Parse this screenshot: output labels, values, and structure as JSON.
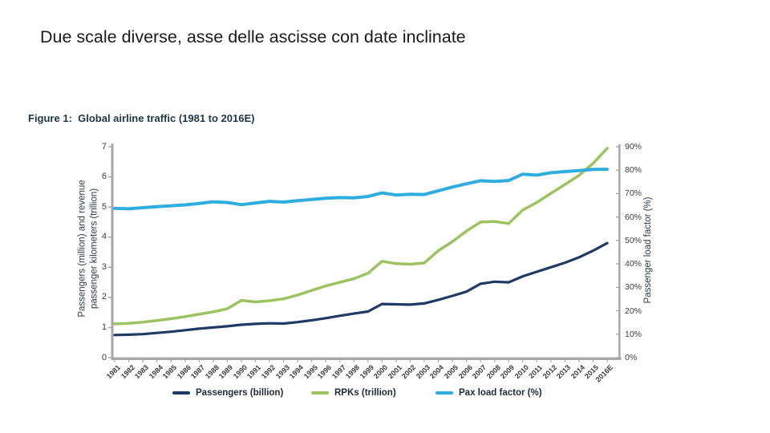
{
  "slide": {
    "title": "Due scale diverse, asse delle ascisse con date inclinate"
  },
  "figure": {
    "title": "Figure 1:  Global airline traffic (1981 to 2016E)"
  },
  "axes": {
    "left": {
      "title_line1": "Passengers (million) and revenue",
      "title_line2": "passenger kilometers (trillion)",
      "ticks": [
        "7",
        "6",
        "5",
        "4",
        "3",
        "2",
        "1",
        "0"
      ]
    },
    "right": {
      "title": "Passenger load factor (%)",
      "ticks": [
        "90%",
        "80%",
        "70%",
        "60%",
        "50%",
        "40%",
        "30%",
        "20%",
        "10%",
        "0%"
      ]
    }
  },
  "legend": {
    "items": [
      {
        "label": "Passengers (billion)",
        "color": "#1f3a64"
      },
      {
        "label": "RPKs (trillion)",
        "color": "#9cc35f"
      },
      {
        "label": "Pax load factor (%)",
        "color": "#2fadde"
      }
    ]
  },
  "chart_data": {
    "type": "line",
    "title": "Figure 1: Global airline traffic (1981 to 2016E)",
    "x": [
      "1981",
      "1982",
      "1983",
      "1984",
      "1985",
      "1986",
      "1987",
      "1988",
      "1989",
      "1990",
      "1991",
      "1992",
      "1993",
      "1994",
      "1995",
      "1996",
      "1997",
      "1998",
      "1999",
      "2000",
      "2001",
      "2002",
      "2003",
      "2004",
      "2005",
      "2006",
      "2007",
      "2008",
      "2009",
      "2010",
      "2011",
      "2012",
      "2013",
      "2014",
      "2015",
      "2016E"
    ],
    "series": [
      {
        "name": "Passengers (billion)",
        "axis": "left",
        "color": "#1f3a64",
        "values": [
          0.75,
          0.76,
          0.78,
          0.82,
          0.86,
          0.91,
          0.96,
          1.0,
          1.04,
          1.09,
          1.12,
          1.14,
          1.13,
          1.18,
          1.24,
          1.31,
          1.39,
          1.46,
          1.53,
          1.78,
          1.77,
          1.76,
          1.8,
          1.92,
          2.05,
          2.19,
          2.45,
          2.52,
          2.5,
          2.7,
          2.85,
          3.0,
          3.15,
          3.33,
          3.55,
          3.8
        ]
      },
      {
        "name": "RPKs (trillion)",
        "axis": "left",
        "color": "#9cc35f",
        "values": [
          1.12,
          1.14,
          1.18,
          1.23,
          1.29,
          1.36,
          1.44,
          1.52,
          1.62,
          1.9,
          1.85,
          1.89,
          1.95,
          2.08,
          2.23,
          2.38,
          2.5,
          2.62,
          2.8,
          3.2,
          3.12,
          3.1,
          3.14,
          3.55,
          3.85,
          4.2,
          4.5,
          4.52,
          4.45,
          4.9,
          5.15,
          5.45,
          5.75,
          6.05,
          6.45,
          6.95
        ]
      },
      {
        "name": "Pax load factor (%)",
        "axis": "right",
        "color": "#2fadde",
        "values": [
          63.7,
          63.5,
          64.0,
          64.4,
          64.8,
          65.2,
          65.8,
          66.5,
          66.2,
          65.3,
          66.0,
          66.7,
          66.4,
          67.0,
          67.5,
          68.0,
          68.3,
          68.2,
          68.8,
          70.3,
          69.4,
          69.7,
          69.6,
          71.2,
          72.8,
          74.2,
          75.5,
          75.2,
          75.6,
          78.3,
          77.9,
          78.9,
          79.4,
          79.8,
          80.3,
          80.4
        ]
      }
    ],
    "y_left": {
      "label": "Passengers (million) and revenue passenger kilometers (trillion)",
      "range": [
        0,
        7
      ]
    },
    "y_right": {
      "label": "Passenger load factor (%)",
      "range": [
        0,
        90
      ],
      "unit": "%"
    },
    "grid": false,
    "legend_position": "bottom"
  }
}
